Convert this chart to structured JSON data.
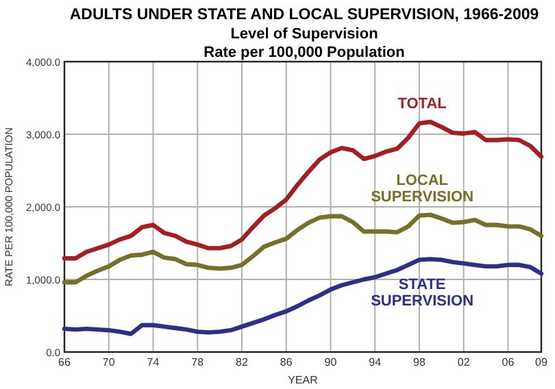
{
  "chart_data": {
    "type": "line",
    "title": "ADULTS UNDER STATE AND LOCAL SUPERVISION, 1966-2009",
    "subtitle": "Level of Supervision\nRate per 100,000 Population",
    "xlabel": "YEAR",
    "ylabel": "RATE PER 100,000 POPULATION",
    "x": [
      1966,
      1967,
      1968,
      1969,
      1970,
      1971,
      1972,
      1973,
      1974,
      1975,
      1976,
      1977,
      1978,
      1979,
      1980,
      1981,
      1982,
      1983,
      1984,
      1985,
      1986,
      1987,
      1988,
      1989,
      1990,
      1991,
      1992,
      1993,
      1994,
      1995,
      1996,
      1997,
      1998,
      1999,
      2000,
      2001,
      2002,
      2003,
      2004,
      2005,
      2006,
      2007,
      2008,
      2009
    ],
    "series": [
      {
        "name": "TOTAL",
        "color": "#a31f24",
        "values": [
          1290,
          1290,
          1380,
          1430,
          1480,
          1550,
          1600,
          1720,
          1750,
          1640,
          1600,
          1520,
          1480,
          1430,
          1430,
          1460,
          1550,
          1720,
          1880,
          1980,
          2100,
          2300,
          2480,
          2650,
          2750,
          2810,
          2780,
          2660,
          2700,
          2760,
          2800,
          2950,
          3150,
          3170,
          3100,
          3020,
          3010,
          3030,
          2920,
          2920,
          2930,
          2920,
          2840,
          2690
        ]
      },
      {
        "name": "LOCAL SUPERVISION",
        "color": "#75702a",
        "values": [
          960,
          960,
          1050,
          1120,
          1180,
          1270,
          1330,
          1340,
          1380,
          1300,
          1280,
          1210,
          1200,
          1160,
          1150,
          1160,
          1200,
          1320,
          1450,
          1510,
          1560,
          1680,
          1780,
          1850,
          1870,
          1870,
          1790,
          1660,
          1660,
          1660,
          1650,
          1730,
          1880,
          1890,
          1840,
          1780,
          1790,
          1820,
          1750,
          1750,
          1730,
          1730,
          1690,
          1600
        ]
      },
      {
        "name": "STATE SUPERVISION",
        "color": "#2e3087",
        "values": [
          320,
          310,
          320,
          310,
          300,
          280,
          250,
          370,
          370,
          350,
          330,
          310,
          280,
          270,
          280,
          300,
          350,
          400,
          450,
          510,
          560,
          630,
          710,
          780,
          860,
          920,
          960,
          1000,
          1030,
          1080,
          1130,
          1200,
          1270,
          1280,
          1270,
          1240,
          1220,
          1200,
          1180,
          1180,
          1200,
          1200,
          1170,
          1080
        ]
      }
    ],
    "xlim": [
      1966,
      2009
    ],
    "xticks": [
      {
        "value": 1966,
        "label": "66"
      },
      {
        "value": 1970,
        "label": "70"
      },
      {
        "value": 1974,
        "label": "74"
      },
      {
        "value": 1978,
        "label": "78"
      },
      {
        "value": 1982,
        "label": "82"
      },
      {
        "value": 1986,
        "label": "86"
      },
      {
        "value": 1990,
        "label": "90"
      },
      {
        "value": 1994,
        "label": "94"
      },
      {
        "value": 1998,
        "label": "98"
      },
      {
        "value": 2002,
        "label": "02"
      },
      {
        "value": 2006,
        "label": "06"
      },
      {
        "value": 2009,
        "label": "09"
      }
    ],
    "ylim": [
      0,
      4000
    ],
    "yticks": [
      {
        "value": 0,
        "label": "0.0"
      },
      {
        "value": 1000,
        "label": "1,000.0"
      },
      {
        "value": 2000,
        "label": "2,000.0"
      },
      {
        "value": 3000,
        "label": "3,000.0"
      },
      {
        "value": 4000,
        "label": "4,000.0"
      }
    ],
    "grid": true,
    "line_style": "solid",
    "marker": "none"
  }
}
